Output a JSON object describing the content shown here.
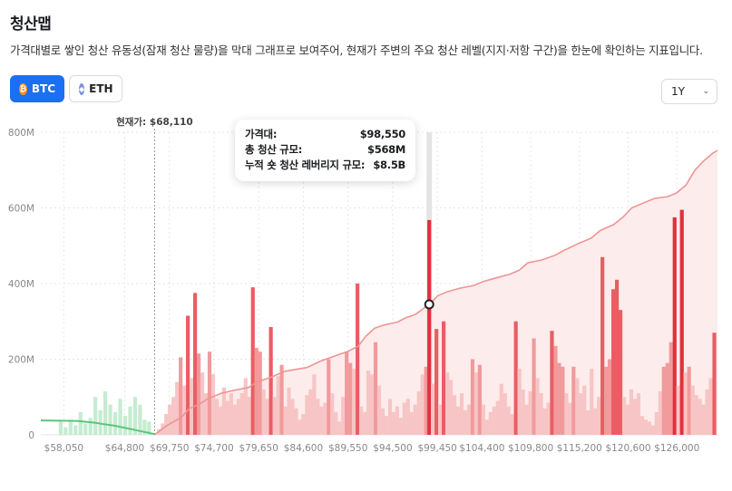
{
  "page": {
    "title": "청산맵",
    "description": "가격대별로 쌓인 청산 유동성(잠재 청산 물량)을 막대 그래프로 보여주어, 현재가 주변의 주요 청산 레벨(지지·저항 구간)을 한눈에 확인하는 지표입니다."
  },
  "tabs": [
    {
      "label": "BTC",
      "icon": "bitcoin-icon",
      "glyph": "₿",
      "active": true
    },
    {
      "label": "ETH",
      "icon": "ethereum-icon",
      "glyph": "◆",
      "active": false
    }
  ],
  "range_select": {
    "value": "1Y",
    "icon": "chevron-down-icon"
  },
  "tooltip": {
    "rows": [
      {
        "label": "가격대:",
        "value": "$98,550"
      },
      {
        "label": "총 청산 규모:",
        "value": "$568M"
      },
      {
        "label": "누적 숏 청산 레버리지 규모:",
        "value": "$8.5B"
      }
    ]
  },
  "chart_data": {
    "type": "bar",
    "title": "청산맵",
    "current_price_label": "현재가: $68,110",
    "current_price": 68110,
    "hover_price": 98550,
    "x_range": [
      55500,
      130500
    ],
    "ylim": [
      0,
      800
    ],
    "y_unit": "M",
    "y_ticks": [
      {
        "value": 0,
        "label": "0"
      },
      {
        "value": 200,
        "label": "200M"
      },
      {
        "value": 400,
        "label": "400M"
      },
      {
        "value": 600,
        "label": "600M"
      },
      {
        "value": 800,
        "label": "800M"
      }
    ],
    "x_ticks": [
      {
        "value": 58050,
        "label": "$58,050"
      },
      {
        "value": 64800,
        "label": "$64,800"
      },
      {
        "value": 69750,
        "label": "$69,750"
      },
      {
        "value": 74700,
        "label": "$74,700"
      },
      {
        "value": 79650,
        "label": "$79,650"
      },
      {
        "value": 84600,
        "label": "$84,600"
      },
      {
        "value": 89550,
        "label": "$89,550"
      },
      {
        "value": 94500,
        "label": "$94,500"
      },
      {
        "value": 99450,
        "label": "$99,450"
      },
      {
        "value": 104400,
        "label": "$104,400"
      },
      {
        "value": 109800,
        "label": "$109,800"
      },
      {
        "value": 115200,
        "label": "$115,200"
      },
      {
        "value": 120600,
        "label": "$120,600"
      },
      {
        "value": 126000,
        "label": "$126,000"
      }
    ],
    "colors": {
      "long_bar": "#c5ecd0",
      "short_bar": "#f7c5c5",
      "short_bar_mid": "#f19a9c",
      "short_bar_strong": "#ea5d64",
      "short_bar_focus": "#e0313d",
      "long_line": "#5cc47e",
      "short_line": "#ee9494",
      "short_area": "#fdecec",
      "grid": "#e6e6e6",
      "axis_text": "#888888",
      "highlight": "#e4e4e4"
    },
    "series": [
      {
        "name": "long_liquidations",
        "bars": [
          [
            57700,
            35
          ],
          [
            58250,
            20
          ],
          [
            58800,
            40
          ],
          [
            59350,
            25
          ],
          [
            59900,
            60
          ],
          [
            60450,
            30
          ],
          [
            61000,
            45
          ],
          [
            61550,
            100
          ],
          [
            62100,
            65
          ],
          [
            62650,
            115
          ],
          [
            63200,
            80
          ],
          [
            63750,
            60
          ],
          [
            64300,
            95
          ],
          [
            64850,
            50
          ],
          [
            65400,
            75
          ],
          [
            65950,
            100
          ],
          [
            66500,
            80
          ],
          [
            67000,
            40
          ],
          [
            67500,
            35
          ]
        ]
      },
      {
        "name": "short_liquidations",
        "bars": [
          [
            68600,
            15
          ],
          [
            69000,
            30
          ],
          [
            69400,
            55
          ],
          [
            69800,
            80
          ],
          [
            70200,
            100
          ],
          [
            70600,
            140
          ],
          [
            71000,
            205
          ],
          [
            71400,
            130
          ],
          [
            71800,
            315
          ],
          [
            72200,
            150
          ],
          [
            72600,
            375
          ],
          [
            73000,
            215
          ],
          [
            73400,
            165
          ],
          [
            73800,
            110
          ],
          [
            74200,
            220
          ],
          [
            74600,
            160
          ],
          [
            75000,
            95
          ],
          [
            75400,
            75
          ],
          [
            75800,
            125
          ],
          [
            76200,
            90
          ],
          [
            76600,
            110
          ],
          [
            77000,
            80
          ],
          [
            77400,
            95
          ],
          [
            77800,
            110
          ],
          [
            78200,
            150
          ],
          [
            78600,
            100
          ],
          [
            79000,
            390
          ],
          [
            79400,
            230
          ],
          [
            79800,
            220
          ],
          [
            80200,
            120
          ],
          [
            80600,
            95
          ],
          [
            81000,
            285
          ],
          [
            81400,
            100
          ],
          [
            81800,
            155
          ],
          [
            82200,
            185
          ],
          [
            82600,
            75
          ],
          [
            83000,
            125
          ],
          [
            83400,
            95
          ],
          [
            83800,
            70
          ],
          [
            84200,
            40
          ],
          [
            84600,
            55
          ],
          [
            85000,
            105
          ],
          [
            85400,
            120
          ],
          [
            85800,
            160
          ],
          [
            86200,
            95
          ],
          [
            86600,
            75
          ],
          [
            87000,
            85
          ],
          [
            87400,
            200
          ],
          [
            87800,
            110
          ],
          [
            88200,
            60
          ],
          [
            88600,
            35
          ],
          [
            89000,
            100
          ],
          [
            89400,
            220
          ],
          [
            89800,
            190
          ],
          [
            90200,
            175
          ],
          [
            90600,
            400
          ],
          [
            91000,
            75
          ],
          [
            91400,
            60
          ],
          [
            91800,
            170
          ],
          [
            92200,
            160
          ],
          [
            92600,
            245
          ],
          [
            93000,
            130
          ],
          [
            93400,
            70
          ],
          [
            93800,
            50
          ],
          [
            94200,
            95
          ],
          [
            94600,
            60
          ],
          [
            95000,
            75
          ],
          [
            95400,
            45
          ],
          [
            95800,
            85
          ],
          [
            96200,
            95
          ],
          [
            96600,
            60
          ],
          [
            97000,
            80
          ],
          [
            97400,
            115
          ],
          [
            97800,
            160
          ],
          [
            98200,
            180
          ],
          [
            98550,
            568
          ],
          [
            98950,
            135
          ],
          [
            99350,
            280
          ],
          [
            99750,
            80
          ],
          [
            100150,
            300
          ],
          [
            100550,
            165
          ],
          [
            100950,
            145
          ],
          [
            101350,
            105
          ],
          [
            101750,
            75
          ],
          [
            102150,
            110
          ],
          [
            102550,
            65
          ],
          [
            102950,
            80
          ],
          [
            103350,
            200
          ],
          [
            103750,
            165
          ],
          [
            104150,
            185
          ],
          [
            104550,
            80
          ],
          [
            104950,
            40
          ],
          [
            105350,
            60
          ],
          [
            105750,
            75
          ],
          [
            106150,
            90
          ],
          [
            106550,
            135
          ],
          [
            106950,
            110
          ],
          [
            107350,
            75
          ],
          [
            107750,
            55
          ],
          [
            108150,
            300
          ],
          [
            108550,
            175
          ],
          [
            108950,
            120
          ],
          [
            109350,
            80
          ],
          [
            109750,
            115
          ],
          [
            110150,
            255
          ],
          [
            110550,
            150
          ],
          [
            110950,
            110
          ],
          [
            111350,
            70
          ],
          [
            111750,
            85
          ],
          [
            112150,
            275
          ],
          [
            112550,
            235
          ],
          [
            112950,
            190
          ],
          [
            113350,
            180
          ],
          [
            113750,
            110
          ],
          [
            114150,
            85
          ],
          [
            114550,
            180
          ],
          [
            114950,
            150
          ],
          [
            115350,
            110
          ],
          [
            115750,
            130
          ],
          [
            116150,
            65
          ],
          [
            116550,
            175
          ],
          [
            116950,
            70
          ],
          [
            117350,
            100
          ],
          [
            117750,
            470
          ],
          [
            118150,
            180
          ],
          [
            118550,
            200
          ],
          [
            118950,
            385
          ],
          [
            119350,
            410
          ],
          [
            119750,
            330
          ],
          [
            120150,
            100
          ],
          [
            120550,
            80
          ],
          [
            120950,
            120
          ],
          [
            121350,
            95
          ],
          [
            121750,
            110
          ],
          [
            122150,
            50
          ],
          [
            122550,
            40
          ],
          [
            122950,
            35
          ],
          [
            123350,
            25
          ],
          [
            123750,
            60
          ],
          [
            124150,
            115
          ],
          [
            124550,
            180
          ],
          [
            124950,
            190
          ],
          [
            125350,
            245
          ],
          [
            125750,
            575
          ],
          [
            126150,
            130
          ],
          [
            126550,
            595
          ],
          [
            126950,
            165
          ],
          [
            127350,
            180
          ],
          [
            127750,
            130
          ],
          [
            128150,
            105
          ],
          [
            128550,
            95
          ],
          [
            128950,
            80
          ],
          [
            129350,
            120
          ],
          [
            129750,
            150
          ],
          [
            130150,
            270
          ]
        ]
      },
      {
        "name": "cumulative_long",
        "line": [
          [
            55500,
            38
          ],
          [
            59500,
            37
          ],
          [
            61500,
            32
          ],
          [
            62500,
            28
          ],
          [
            63500,
            25
          ],
          [
            64500,
            20
          ],
          [
            65500,
            15
          ],
          [
            66500,
            10
          ],
          [
            67500,
            5
          ],
          [
            68100,
            2
          ]
        ]
      },
      {
        "name": "cumulative_short",
        "line": [
          [
            68100,
            0
          ],
          [
            69500,
            25
          ],
          [
            71000,
            45
          ],
          [
            72000,
            70
          ],
          [
            73000,
            80
          ],
          [
            74000,
            95
          ],
          [
            75500,
            110
          ],
          [
            77000,
            118
          ],
          [
            78500,
            125
          ],
          [
            79500,
            140
          ],
          [
            81000,
            152
          ],
          [
            82500,
            168
          ],
          [
            83500,
            172
          ],
          [
            85000,
            178
          ],
          [
            86500,
            195
          ],
          [
            88500,
            212
          ],
          [
            89500,
            220
          ],
          [
            90700,
            235
          ],
          [
            91500,
            260
          ],
          [
            92500,
            282
          ],
          [
            93500,
            290
          ],
          [
            95000,
            298
          ],
          [
            96000,
            310
          ],
          [
            97000,
            318
          ],
          [
            98550,
            345
          ],
          [
            99500,
            368
          ],
          [
            100500,
            378
          ],
          [
            102000,
            388
          ],
          [
            103500,
            395
          ],
          [
            104500,
            405
          ],
          [
            106000,
            415
          ],
          [
            107500,
            425
          ],
          [
            108500,
            435
          ],
          [
            109500,
            455
          ],
          [
            111000,
            462
          ],
          [
            112500,
            475
          ],
          [
            113500,
            488
          ],
          [
            115000,
            505
          ],
          [
            116500,
            520
          ],
          [
            117500,
            540
          ],
          [
            119000,
            556
          ],
          [
            120000,
            575
          ],
          [
            121000,
            600
          ],
          [
            122500,
            615
          ],
          [
            123500,
            625
          ],
          [
            125000,
            630
          ],
          [
            126000,
            640
          ],
          [
            127000,
            660
          ],
          [
            128000,
            700
          ],
          [
            129000,
            725
          ],
          [
            130000,
            745
          ],
          [
            130500,
            752
          ]
        ]
      }
    ]
  }
}
